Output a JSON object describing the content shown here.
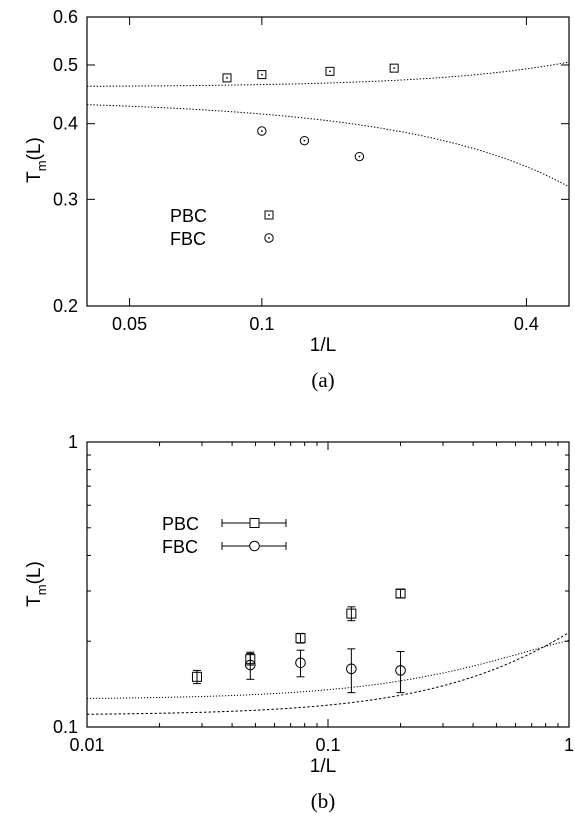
{
  "chart_data": [
    {
      "panel_label": "(a)",
      "type": "scatter",
      "xlabel": "1/L",
      "ylabel_main": "T",
      "ylabel_sub": "m",
      "ylabel_tail": "(L)",
      "xscale": "log",
      "yscale": "log",
      "xlim": [
        0.04,
        0.5
      ],
      "ylim": [
        0.2,
        0.6
      ],
      "xticks": [
        0.05,
        0.1,
        0.4
      ],
      "xticklabels": [
        "0.05",
        "0.1",
        "0.4"
      ],
      "yticks": [
        0.2,
        0.3,
        0.4,
        0.5,
        0.6
      ],
      "yticklabels": [
        "0.2",
        "0.3",
        "0.4",
        "0.5",
        "0.6"
      ],
      "legend_position": "center-left",
      "series": [
        {
          "name": "PBC",
          "marker": "square-dot",
          "x": [
            0.0833,
            0.1,
            0.1429,
            0.2
          ],
          "y": [
            0.476,
            0.482,
            0.488,
            0.494
          ],
          "fit": {
            "a": 0.46,
            "b": 0.28,
            "c": 1.5
          }
        },
        {
          "name": "FBC",
          "marker": "circle-dot",
          "x": [
            0.1,
            0.125,
            0.1667
          ],
          "y": [
            0.389,
            0.375,
            0.353
          ],
          "fit": {
            "a": 0.44,
            "b": -0.57,
            "c": 1.0
          }
        }
      ]
    },
    {
      "panel_label": "(b)",
      "type": "scatter",
      "xlabel": "1/L",
      "ylabel_main": "T",
      "ylabel_sub": "m",
      "ylabel_tail": "(L)",
      "xscale": "log",
      "yscale": "log",
      "xlim": [
        0.01,
        1
      ],
      "ylim": [
        0.1,
        1
      ],
      "xticks": [
        0.01,
        0.1,
        1
      ],
      "xticklabels": [
        "0.01",
        "0.1",
        "1"
      ],
      "yticks": [
        0.1,
        1
      ],
      "yticklabels": [
        "0.1",
        "1"
      ],
      "legend_position": "upper-left",
      "series": [
        {
          "name": "PBC",
          "marker": "square-errorbar",
          "x": [
            0.0286,
            0.0476,
            0.0769,
            0.125,
            0.2
          ],
          "y": [
            0.15,
            0.173,
            0.205,
            0.25,
            0.294
          ],
          "yerr": [
            0.008,
            0.008,
            0.008,
            0.014,
            0.01
          ],
          "fit": {
            "a": 0.11,
            "b": 0.95,
            "c": 1.05
          }
        },
        {
          "name": "FBC",
          "marker": "circle-errorbar",
          "x": [
            0.0476,
            0.0769,
            0.125,
            0.2
          ],
          "y": [
            0.165,
            0.168,
            0.16,
            0.158
          ],
          "yerr": [
            0.018,
            0.018,
            0.028,
            0.026
          ],
          "fit": {
            "a": 0.125,
            "b": 0.95,
            "c": 1.05,
            "d": -0.34,
            "e": 2.0
          }
        }
      ]
    }
  ]
}
